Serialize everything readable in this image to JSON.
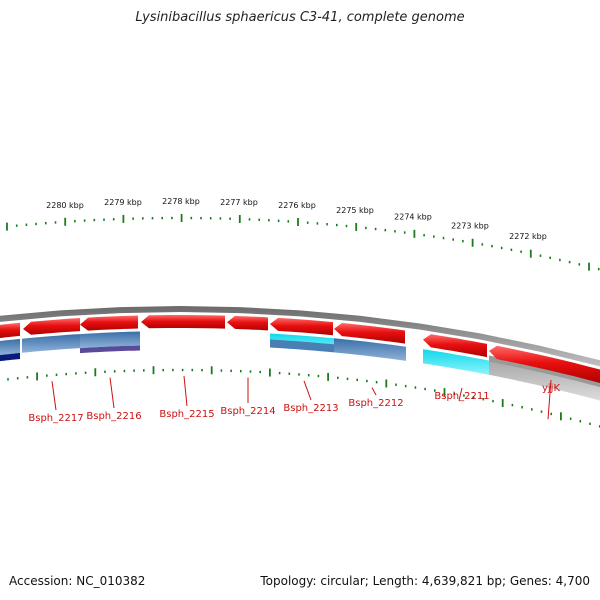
{
  "title": "Lysinibacillus sphaericus C3-41, complete genome",
  "footer": {
    "accession": "Accession: NC_010382",
    "summary": "Topology: circular; Length: 4,639,821 bp; Genes: 4,700"
  },
  "colors": {
    "forward_gene": "#e81010",
    "feature_blue": "#4a7fb5",
    "feature_cyan": "#1ee0f0",
    "feature_purple": "#5a4a9a",
    "feature_navy": "#0a1a7a",
    "feature_gray": "#bbbbbb",
    "backbone": "#8a8a8a",
    "ticks": "#1e7a1e",
    "labels": "#cc1111"
  },
  "kbp_labels": [
    "2280 kbp",
    "2279 kbp",
    "2278 kbp",
    "2277 kbp",
    "2276 kbp",
    "2275 kbp",
    "2274 kbp",
    "2273 kbp",
    "2272 kbp"
  ],
  "genes": [
    "Bsph_2217",
    "Bsph_2216",
    "Bsph_2215",
    "Bsph_2214",
    "Bsph_2213",
    "Bsph_2212",
    "Bsph_2211",
    "yjjK"
  ]
}
